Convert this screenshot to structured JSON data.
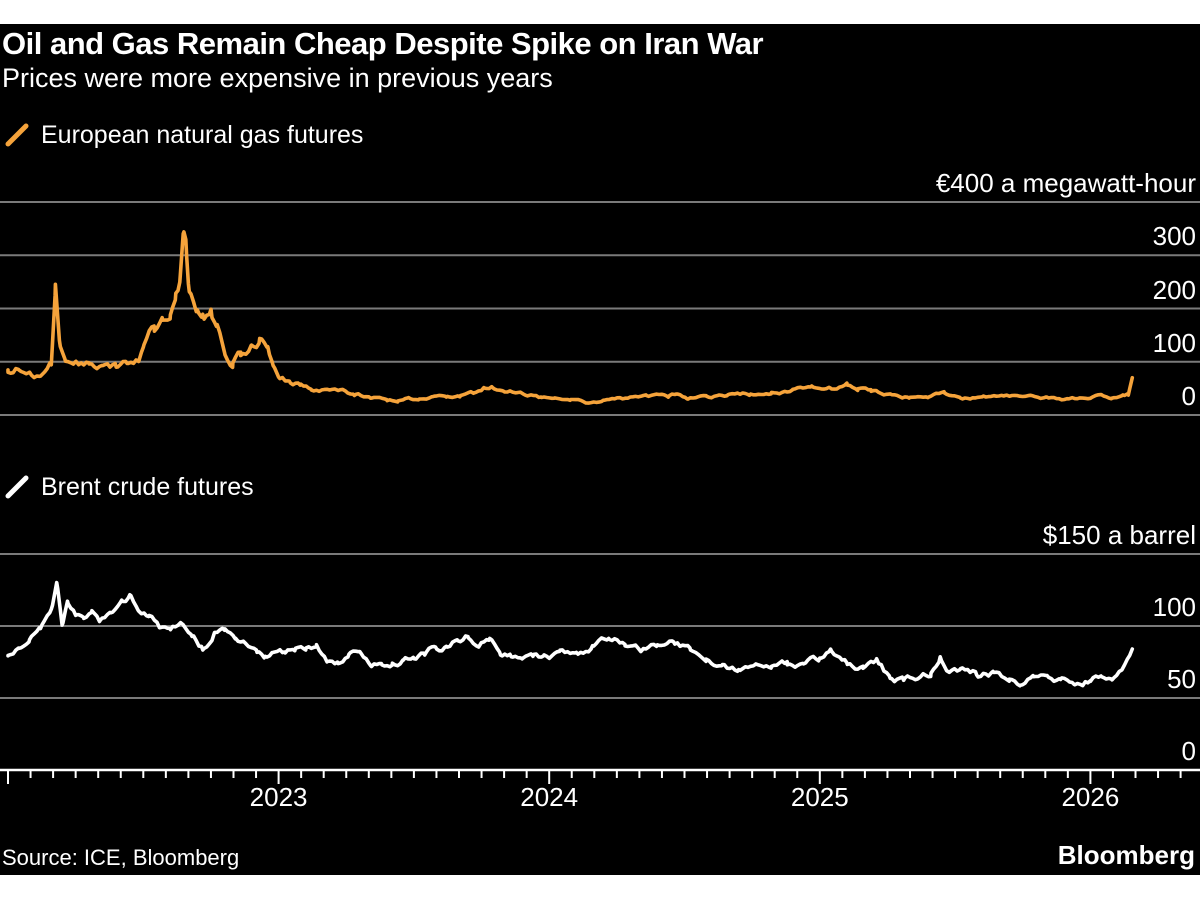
{
  "header": {
    "title": "Oil and Gas Remain Cheap Despite Spike on Iran War",
    "subtitle": "Prices were more expensive in previous years"
  },
  "footer": {
    "source": "Source: ICE, Bloomberg",
    "brand": "Bloomberg"
  },
  "colors": {
    "background": "#000000",
    "text": "#ffffff",
    "grid": "#7a7a7a",
    "axis": "#ffffff",
    "gas": "#F5A33B",
    "brent": "#ffffff"
  },
  "chart_data": {
    "type": "line",
    "x_axis": {
      "range_years": [
        2022.0,
        2026.38
      ],
      "tick_interval": "monthly",
      "years": [
        {
          "label": "2023",
          "t": 2023
        },
        {
          "label": "2024",
          "t": 2024
        },
        {
          "label": "2025",
          "t": 2025
        },
        {
          "label": "2026",
          "t": 2026
        }
      ]
    },
    "panels": [
      {
        "id": "gas",
        "legend": "European natural gas futures",
        "color": "#F5A33B",
        "axis_top_label": "€400 a megawatt-hour",
        "axis_top_value": 400,
        "yticks": [
          300,
          200,
          100,
          0
        ],
        "ylim": [
          0,
          400
        ],
        "unit": "EUR per megawatt-hour",
        "series": [
          [
            2022.0,
            83
          ],
          [
            2022.04,
            90
          ],
          [
            2022.08,
            80
          ],
          [
            2022.12,
            74
          ],
          [
            2022.16,
            95
          ],
          [
            2022.175,
            230
          ],
          [
            2022.19,
            135
          ],
          [
            2022.21,
            112
          ],
          [
            2022.25,
            105
          ],
          [
            2022.3,
            99
          ],
          [
            2022.35,
            96
          ],
          [
            2022.4,
            90
          ],
          [
            2022.44,
            94
          ],
          [
            2022.48,
            104
          ],
          [
            2022.5,
            128
          ],
          [
            2022.54,
            158
          ],
          [
            2022.57,
            172
          ],
          [
            2022.6,
            196
          ],
          [
            2022.62,
            228
          ],
          [
            2022.635,
            240
          ],
          [
            2022.65,
            340
          ],
          [
            2022.66,
            305
          ],
          [
            2022.67,
            238
          ],
          [
            2022.7,
            212
          ],
          [
            2022.72,
            188
          ],
          [
            2022.75,
            192
          ],
          [
            2022.77,
            160
          ],
          [
            2022.8,
            122
          ],
          [
            2022.83,
            100
          ],
          [
            2022.86,
            118
          ],
          [
            2022.9,
            130
          ],
          [
            2022.93,
            140
          ],
          [
            2022.96,
            122
          ],
          [
            2022.98,
            95
          ],
          [
            2023.0,
            77
          ],
          [
            2023.04,
            64
          ],
          [
            2023.08,
            57
          ],
          [
            2023.12,
            51
          ],
          [
            2023.17,
            47
          ],
          [
            2023.22,
            44
          ],
          [
            2023.28,
            38
          ],
          [
            2023.34,
            33
          ],
          [
            2023.4,
            29
          ],
          [
            2023.44,
            25
          ],
          [
            2023.48,
            33
          ],
          [
            2023.52,
            29
          ],
          [
            2023.57,
            34
          ],
          [
            2023.62,
            34
          ],
          [
            2023.67,
            36
          ],
          [
            2023.72,
            39
          ],
          [
            2023.76,
            50
          ],
          [
            2023.79,
            55
          ],
          [
            2023.83,
            46
          ],
          [
            2023.88,
            45
          ],
          [
            2023.92,
            41
          ],
          [
            2023.97,
            34
          ],
          [
            2024.02,
            29
          ],
          [
            2024.08,
            27
          ],
          [
            2024.13,
            25
          ],
          [
            2024.2,
            27
          ],
          [
            2024.28,
            30
          ],
          [
            2024.36,
            34
          ],
          [
            2024.44,
            35
          ],
          [
            2024.47,
            38
          ],
          [
            2024.51,
            32
          ],
          [
            2024.58,
            35
          ],
          [
            2024.66,
            36
          ],
          [
            2024.74,
            39
          ],
          [
            2024.82,
            43
          ],
          [
            2024.9,
            46
          ],
          [
            2024.97,
            48
          ],
          [
            2025.04,
            52
          ],
          [
            2025.1,
            57
          ],
          [
            2025.14,
            50
          ],
          [
            2025.19,
            43
          ],
          [
            2025.26,
            36
          ],
          [
            2025.33,
            33
          ],
          [
            2025.4,
            36
          ],
          [
            2025.46,
            40
          ],
          [
            2025.52,
            34
          ],
          [
            2025.6,
            33
          ],
          [
            2025.68,
            33
          ],
          [
            2025.76,
            32
          ],
          [
            2025.84,
            31
          ],
          [
            2025.92,
            30
          ],
          [
            2026.0,
            31
          ],
          [
            2026.04,
            38
          ],
          [
            2026.08,
            31
          ],
          [
            2026.12,
            35
          ],
          [
            2026.14,
            38
          ],
          [
            2026.155,
            70
          ]
        ]
      },
      {
        "id": "brent",
        "legend": "Brent crude futures",
        "color": "#ffffff",
        "axis_top_label": "$150 a barrel",
        "axis_top_value": 150,
        "yticks": [
          100,
          50,
          0
        ],
        "ylim": [
          0,
          150
        ],
        "unit": "USD per barrel",
        "series": [
          [
            2022.0,
            78
          ],
          [
            2022.04,
            84
          ],
          [
            2022.08,
            91
          ],
          [
            2022.12,
            96
          ],
          [
            2022.16,
            112
          ],
          [
            2022.18,
            128
          ],
          [
            2022.2,
            99
          ],
          [
            2022.22,
            116
          ],
          [
            2022.25,
            107
          ],
          [
            2022.28,
            104
          ],
          [
            2022.31,
            110
          ],
          [
            2022.34,
            101
          ],
          [
            2022.38,
            108
          ],
          [
            2022.42,
            118
          ],
          [
            2022.45,
            122
          ],
          [
            2022.48,
            113
          ],
          [
            2022.52,
            108
          ],
          [
            2022.56,
            99
          ],
          [
            2022.6,
            96
          ],
          [
            2022.64,
            100
          ],
          [
            2022.68,
            92
          ],
          [
            2022.72,
            84
          ],
          [
            2022.76,
            94
          ],
          [
            2022.8,
            96
          ],
          [
            2022.84,
            92
          ],
          [
            2022.88,
            87
          ],
          [
            2022.92,
            81
          ],
          [
            2022.95,
            77
          ],
          [
            2022.98,
            83
          ],
          [
            2023.02,
            82
          ],
          [
            2023.06,
            85
          ],
          [
            2023.1,
            83
          ],
          [
            2023.14,
            86
          ],
          [
            2023.18,
            74
          ],
          [
            2023.22,
            73
          ],
          [
            2023.26,
            81
          ],
          [
            2023.3,
            84
          ],
          [
            2023.34,
            76
          ],
          [
            2023.38,
            75
          ],
          [
            2023.42,
            72
          ],
          [
            2023.46,
            75
          ],
          [
            2023.5,
            77
          ],
          [
            2023.54,
            81
          ],
          [
            2023.58,
            85
          ],
          [
            2023.62,
            86
          ],
          [
            2023.66,
            91
          ],
          [
            2023.7,
            94
          ],
          [
            2023.74,
            89
          ],
          [
            2023.78,
            91
          ],
          [
            2023.82,
            83
          ],
          [
            2023.86,
            80
          ],
          [
            2023.9,
            77
          ],
          [
            2023.94,
            79
          ],
          [
            2023.98,
            77
          ],
          [
            2024.04,
            80
          ],
          [
            2024.1,
            82
          ],
          [
            2024.16,
            86
          ],
          [
            2024.22,
            90
          ],
          [
            2024.28,
            87
          ],
          [
            2024.34,
            82
          ],
          [
            2024.4,
            85
          ],
          [
            2024.46,
            87
          ],
          [
            2024.52,
            84
          ],
          [
            2024.58,
            79
          ],
          [
            2024.64,
            73
          ],
          [
            2024.7,
            69
          ],
          [
            2024.76,
            75
          ],
          [
            2024.82,
            72
          ],
          [
            2024.88,
            73
          ],
          [
            2024.94,
            73
          ],
          [
            2025.0,
            77
          ],
          [
            2025.04,
            82
          ],
          [
            2025.1,
            76
          ],
          [
            2025.16,
            71
          ],
          [
            2025.21,
            73
          ],
          [
            2025.26,
            63
          ],
          [
            2025.31,
            61
          ],
          [
            2025.36,
            65
          ],
          [
            2025.41,
            67
          ],
          [
            2025.445,
            79
          ],
          [
            2025.47,
            70
          ],
          [
            2025.52,
            69
          ],
          [
            2025.58,
            66
          ],
          [
            2025.64,
            68
          ],
          [
            2025.7,
            64
          ],
          [
            2025.74,
            58
          ],
          [
            2025.79,
            64
          ],
          [
            2025.84,
            62
          ],
          [
            2025.89,
            61
          ],
          [
            2025.94,
            60
          ],
          [
            2026.0,
            63
          ],
          [
            2026.04,
            66
          ],
          [
            2026.08,
            64
          ],
          [
            2026.12,
            68
          ],
          [
            2026.155,
            84
          ]
        ]
      }
    ]
  }
}
